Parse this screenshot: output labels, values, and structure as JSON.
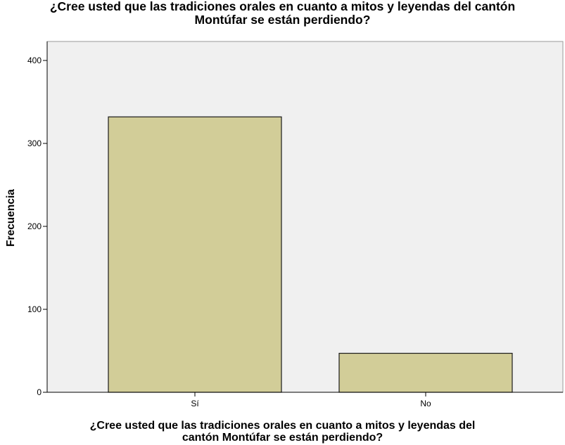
{
  "chart_data": {
    "type": "bar",
    "title": {
      "line1": "¿Cree usted que las tradiciones orales en cuanto a mitos y leyendas del cantón",
      "line2": "Montúfar se están perdiendo?"
    },
    "xlabel": {
      "line1": "¿Cree usted que las tradiciones orales en cuanto a mitos y leyendas del",
      "line2": "cantón Montúfar se están perdiendo?"
    },
    "ylabel": "Frecuencia",
    "categories": [
      "Sí",
      "No"
    ],
    "values": [
      332,
      47
    ],
    "ylim": [
      0,
      420
    ],
    "yticks": [
      0,
      100,
      200,
      300,
      400
    ],
    "grid": false,
    "colors": {
      "bar_fill": "#d2cd98",
      "bar_stroke": "#1a1a1a",
      "plot_background": "#f0f0f0",
      "axis": "#000000"
    }
  }
}
